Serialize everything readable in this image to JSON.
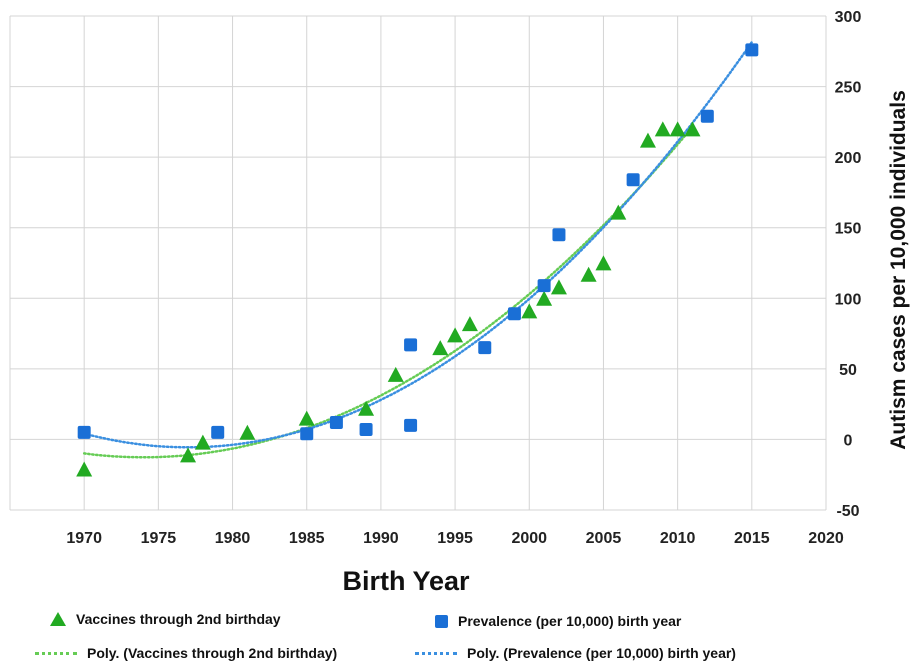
{
  "chart_data": {
    "type": "scatter",
    "xlabel": "Birth Year",
    "ylabel": "Autism cases per 10,000 individuals",
    "xlim": [
      1970,
      2020
    ],
    "ylim": [
      -50,
      300
    ],
    "x_ticks": [
      "1970",
      "1975",
      "1980",
      "1985",
      "1990",
      "1995",
      "2000",
      "2005",
      "2010",
      "2015",
      "2020"
    ],
    "y_ticks": [
      "300",
      "250",
      "200",
      "150",
      "100",
      "50",
      "0",
      "-50"
    ],
    "grid": true,
    "legend_position": "bottom",
    "series": [
      {
        "name": "Vaccines through 2nd birthday",
        "marker": "triangle",
        "color": "#22aa22",
        "points": [
          [
            1970,
            -22
          ],
          [
            1977,
            -12
          ],
          [
            1978,
            -3
          ],
          [
            1981,
            4
          ],
          [
            1985,
            14
          ],
          [
            1989,
            21
          ],
          [
            1991,
            45
          ],
          [
            1994,
            64
          ],
          [
            1995,
            73
          ],
          [
            1996,
            81
          ],
          [
            2000,
            90
          ],
          [
            2001,
            99
          ],
          [
            2002,
            107
          ],
          [
            2004,
            116
          ],
          [
            2005,
            124
          ],
          [
            2006,
            160
          ],
          [
            2008,
            211
          ],
          [
            2009,
            219
          ],
          [
            2010,
            219
          ],
          [
            2011,
            219
          ]
        ]
      },
      {
        "name": "Prevalence (per 10,000) birth year",
        "marker": "square",
        "color": "#1a6fd6",
        "points": [
          [
            1970,
            5
          ],
          [
            1979,
            5
          ],
          [
            1985,
            4
          ],
          [
            1987,
            12
          ],
          [
            1989,
            7
          ],
          [
            1992,
            10
          ],
          [
            1992,
            67
          ],
          [
            1997,
            65
          ],
          [
            1999,
            89
          ],
          [
            2001,
            109
          ],
          [
            2002,
            145
          ],
          [
            2007,
            184
          ],
          [
            2012,
            229
          ],
          [
            2015,
            276
          ]
        ]
      }
    ],
    "trendlines": [
      {
        "name": "Poly. (Vaccines through 2nd birthday)",
        "type": "polynomial",
        "color": "#66cc55",
        "style": "dotted"
      },
      {
        "name": "Poly. (Prevalence (per 10,000) birth year)",
        "type": "polynomial",
        "color": "#3a8fe0",
        "style": "dotted"
      }
    ]
  }
}
